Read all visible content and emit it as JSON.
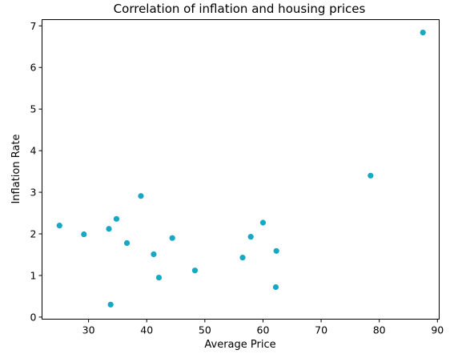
{
  "chart_data": {
    "type": "scatter",
    "title": "Correlation of inflation and housing prices",
    "xlabel": "Average Price",
    "ylabel": "Inflation Rate",
    "xlim": [
      22.0,
      90.3
    ],
    "ylim": [
      -0.05,
      7.15
    ],
    "xticks": [
      30,
      40,
      50,
      60,
      70,
      80,
      90
    ],
    "yticks": [
      0,
      1,
      2,
      3,
      4,
      5,
      6,
      7
    ],
    "grid": false,
    "marker_color": "#17a8c4",
    "series": [
      {
        "x": [
          25.0,
          29.2,
          33.5,
          33.8,
          34.8,
          36.6,
          39.0,
          41.2,
          42.1,
          44.4,
          48.3,
          56.5,
          57.9,
          60.0,
          62.2,
          62.3,
          78.5,
          87.5
        ],
        "y": [
          2.2,
          1.99,
          2.12,
          0.3,
          2.36,
          1.78,
          2.91,
          1.51,
          0.95,
          1.9,
          1.12,
          1.43,
          1.93,
          2.27,
          0.72,
          1.59,
          3.4,
          6.84
        ]
      }
    ]
  }
}
